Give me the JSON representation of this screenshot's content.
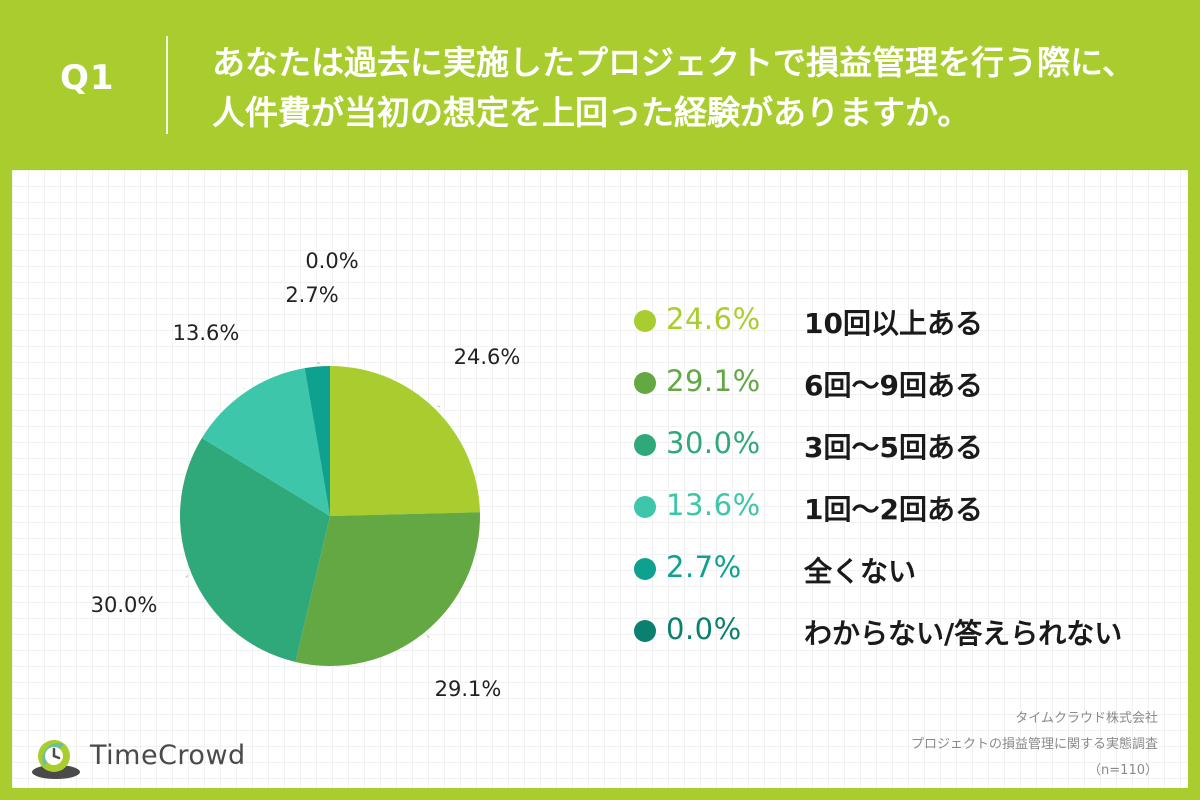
{
  "header": {
    "qnum": "Q1",
    "question_line1": "あなたは過去に実施したプロジェクトで損益管理を行う際に、",
    "question_line2": "人件費が当初の想定を上回った経験がありますか。"
  },
  "chart_data": {
    "type": "pie",
    "title": "あなたは過去に実施したプロジェクトで損益管理を行う際に、人件費が当初の想定を上回った経験がありますか。",
    "unit": "%",
    "slices": [
      {
        "label": "10回以上ある",
        "value": 24.6,
        "display": "24.6%",
        "color": "#a9cd2f"
      },
      {
        "label": "6回〜9回ある",
        "value": 29.1,
        "display": "29.1%",
        "color": "#63a843"
      },
      {
        "label": "3回〜5回ある",
        "value": 30.0,
        "display": "30.0%",
        "color": "#30a97a"
      },
      {
        "label": "1回〜2回ある",
        "value": 13.6,
        "display": "13.6%",
        "color": "#3dc6a9"
      },
      {
        "label": "全くない",
        "value": 2.7,
        "display": "2.7%",
        "color": "#0fa18f"
      },
      {
        "label": "わからない/答えられない",
        "value": 0.0,
        "display": "0.0%",
        "color": "#0b7f70"
      }
    ]
  },
  "footer": {
    "company": "タイムクラウド株式会社",
    "survey": "プロジェクトの損益管理に関する実態調査",
    "sample": "（n=110）"
  },
  "brand": {
    "name": "TimeCrowd"
  }
}
